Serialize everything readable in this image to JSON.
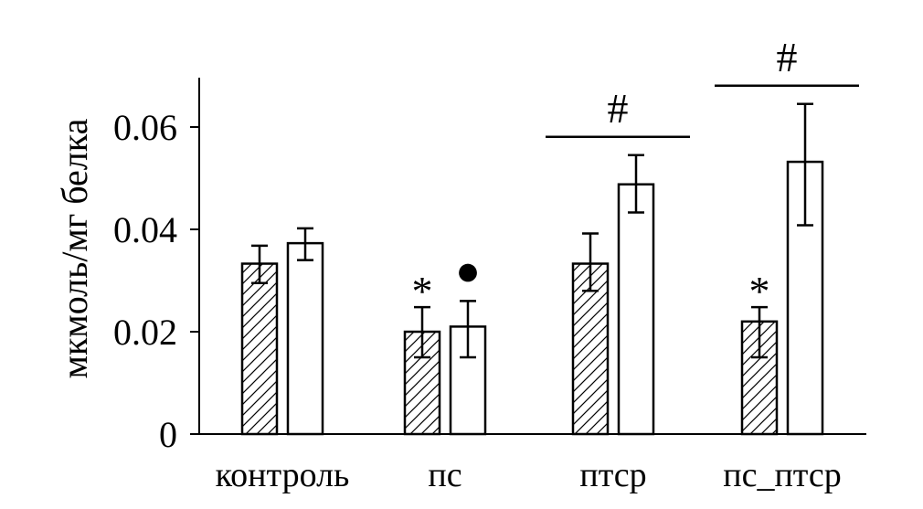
{
  "chart_data": {
    "type": "bar",
    "ylabel": "мкмоль/мг белка",
    "ylim": [
      0,
      0.07
    ],
    "yticks": [
      "0",
      "0.02",
      "0.04",
      "0.06"
    ],
    "categories": [
      "контроль",
      "пс",
      "птср",
      "пс_птср"
    ],
    "series": [
      {
        "pattern": "hatched",
        "values": [
          0.0333,
          0.02,
          0.0333,
          0.022
        ],
        "error_low": [
          0.0295,
          0.015,
          0.028,
          0.015
        ],
        "error_high": [
          0.0368,
          0.0248,
          0.0392,
          0.0248
        ]
      },
      {
        "pattern": "open",
        "values": [
          0.0373,
          0.021,
          0.0488,
          0.0532
        ],
        "error_low": [
          0.034,
          0.015,
          0.0433,
          0.0408
        ],
        "error_high": [
          0.0402,
          0.026,
          0.0545,
          0.0645
        ]
      }
    ],
    "bar_markers": [
      {
        "category": 1,
        "series": 0,
        "symbol": "*"
      },
      {
        "category": 1,
        "series": 1,
        "symbol": "●"
      },
      {
        "category": 3,
        "series": 0,
        "symbol": "*"
      }
    ],
    "brackets": [
      {
        "category": 2,
        "symbol": "#"
      },
      {
        "category": 3,
        "symbol": "#"
      }
    ],
    "grid": false,
    "legend": "none",
    "colors": {
      "line": "#000000",
      "fill": "#ffffff"
    }
  }
}
